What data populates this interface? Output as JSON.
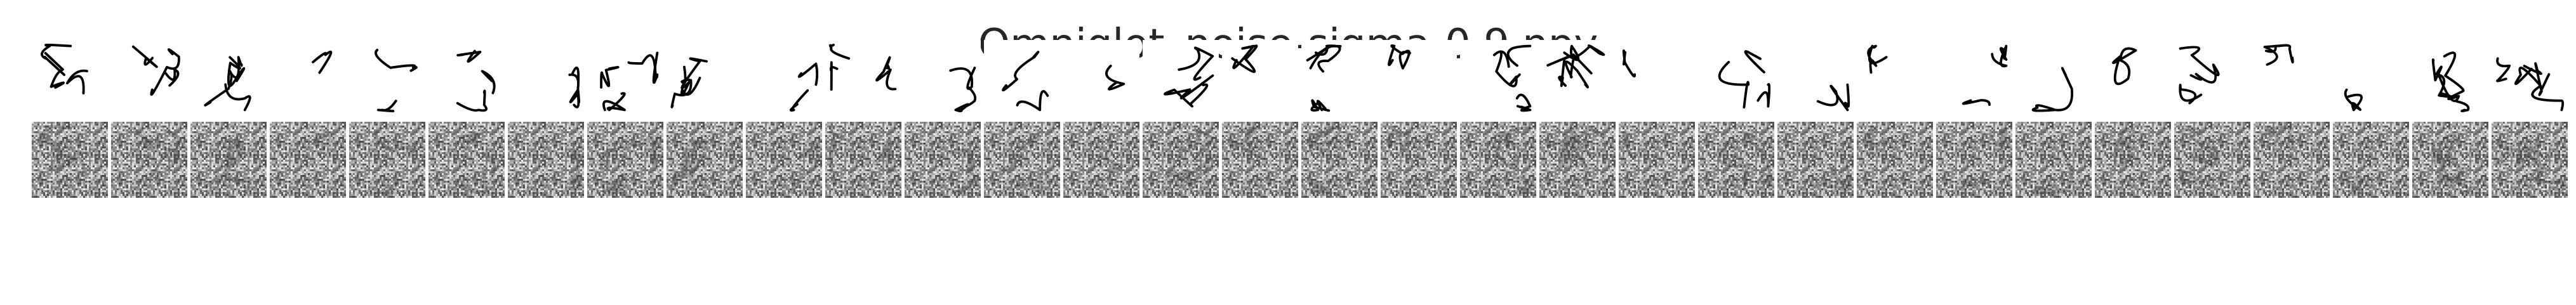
{
  "figure": {
    "title": "Omniglot_noise-sigma-0.9.npy",
    "rows": [
      "clean",
      "noisy"
    ],
    "columns": 32,
    "noise_sigma": 0.9,
    "colors": {
      "ink": "#000000",
      "background": "#ffffff"
    }
  }
}
